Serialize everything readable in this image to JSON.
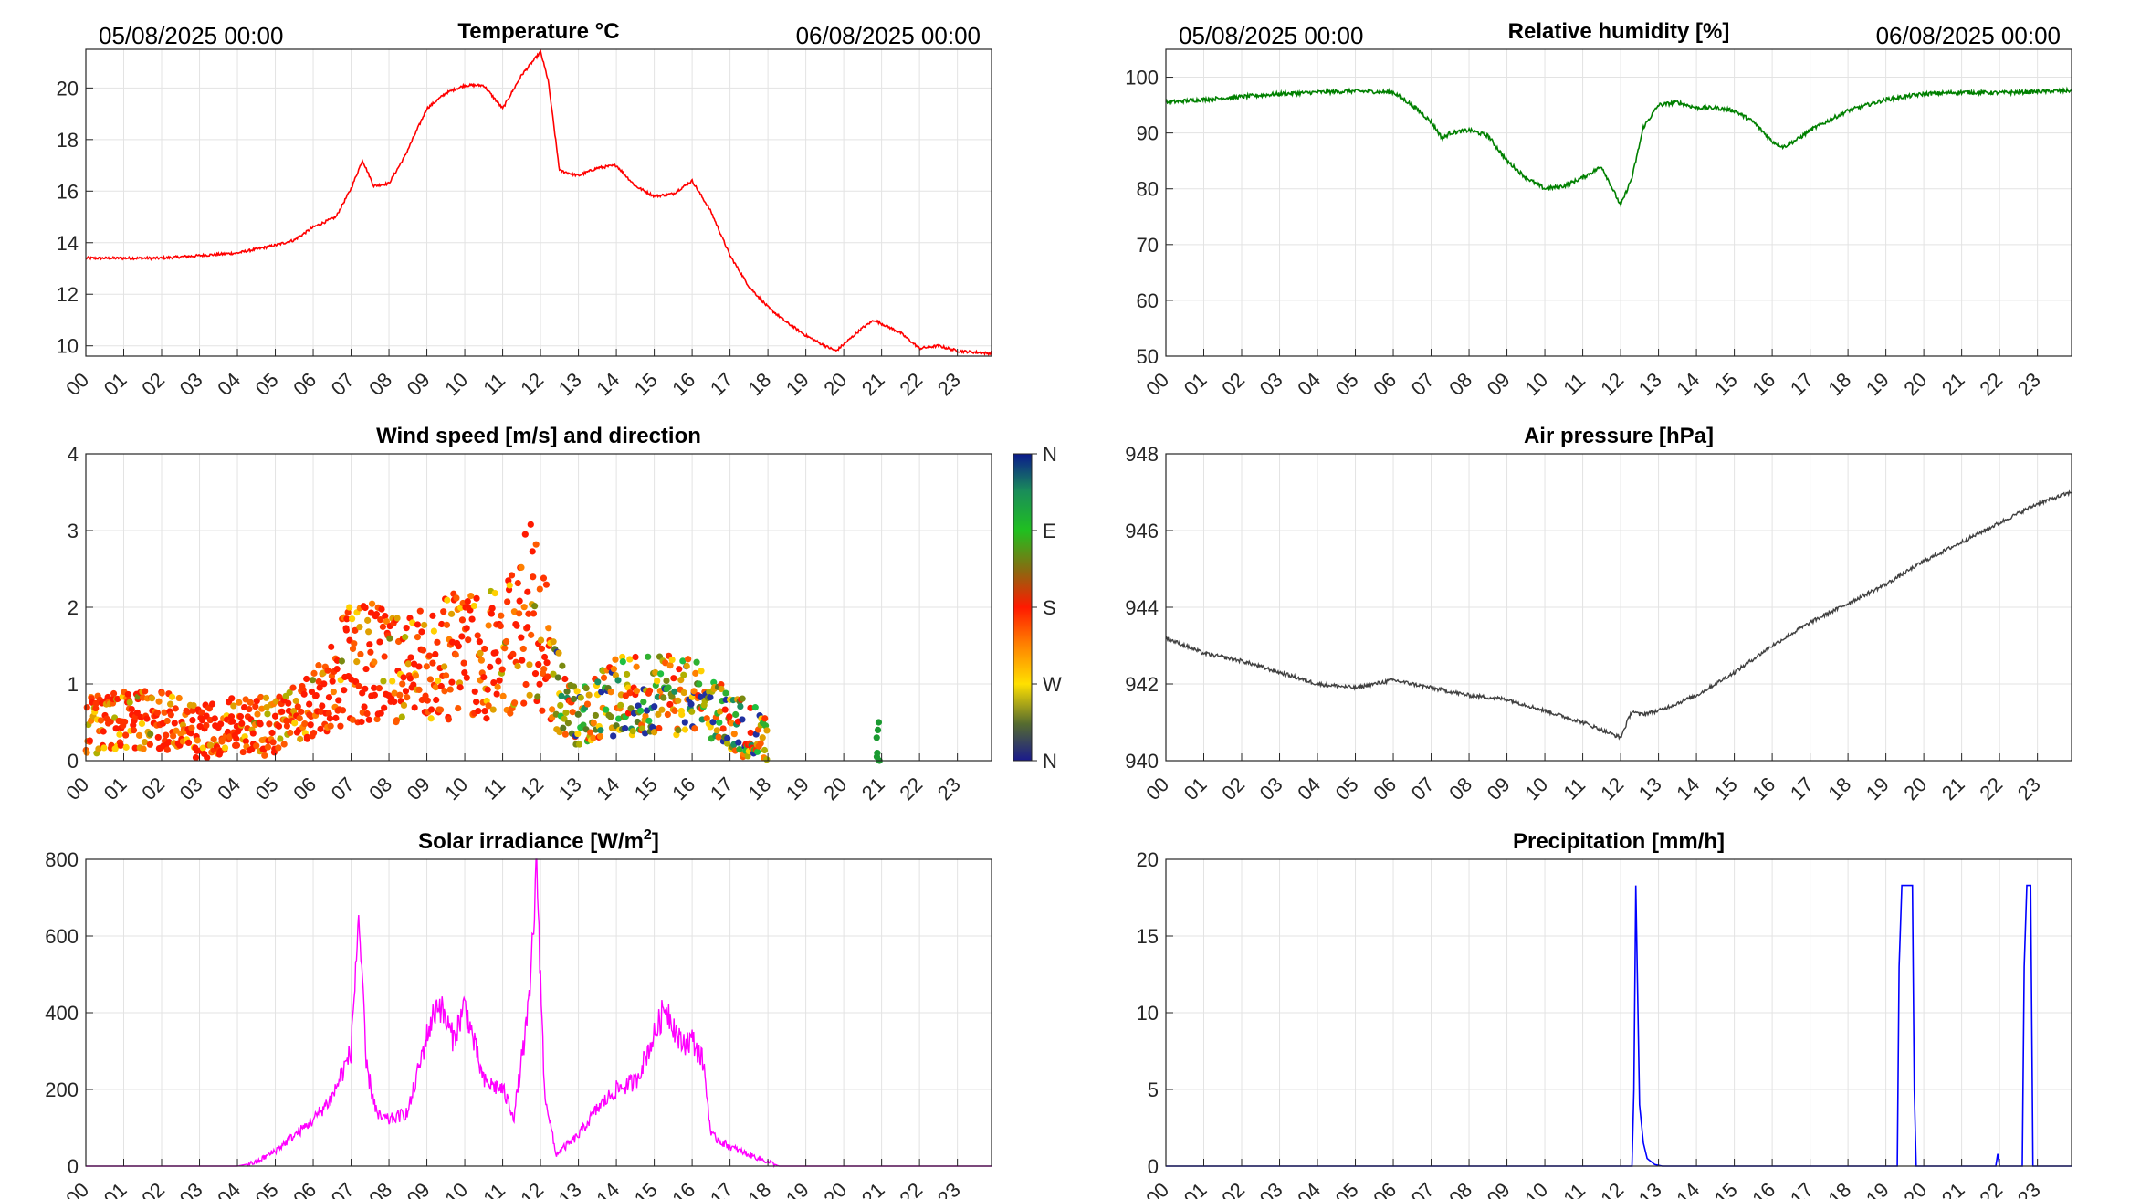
{
  "hours": [
    "00",
    "01",
    "02",
    "03",
    "04",
    "05",
    "06",
    "07",
    "08",
    "09",
    "10",
    "11",
    "12",
    "13",
    "14",
    "15",
    "16",
    "17",
    "18",
    "19",
    "20",
    "21",
    "22",
    "23"
  ],
  "date_start": "05/08/2025 00:00",
  "date_end": "06/08/2025 00:00",
  "colorbar": {
    "labels": [
      "N",
      "W",
      "S",
      "E",
      "N"
    ]
  },
  "chart_data": [
    {
      "id": "temperature",
      "type": "line",
      "title": "Temperature °C",
      "color": "#ff0000",
      "xlabel": "",
      "ylabel": "",
      "xlim": [
        0,
        23.9
      ],
      "ylim": [
        9.6,
        21.5
      ],
      "yticks": [
        10,
        12,
        14,
        16,
        18,
        20
      ],
      "x": [
        0,
        1,
        2,
        3,
        4,
        5,
        5.5,
        6,
        6.6,
        7,
        7.3,
        7.6,
        8,
        8.4,
        9,
        9.5,
        10,
        10.5,
        11,
        11.5,
        12,
        12.2,
        12.5,
        13,
        13.5,
        14,
        14.5,
        15,
        15.5,
        16,
        16.5,
        17,
        17.5,
        18,
        18.5,
        19,
        19.5,
        19.8,
        20.5,
        20.8,
        21.5,
        22,
        22.5,
        23,
        23.9
      ],
      "y": [
        13.4,
        13.4,
        13.4,
        13.5,
        13.6,
        13.9,
        14.1,
        14.6,
        15,
        16.1,
        17.2,
        16.2,
        16.3,
        17.3,
        19.2,
        19.8,
        20.1,
        20.1,
        19.2,
        20.5,
        21.4,
        20.3,
        16.8,
        16.6,
        16.9,
        17,
        16.2,
        15.8,
        15.9,
        16.4,
        15.2,
        13.5,
        12.3,
        11.5,
        10.9,
        10.4,
        10,
        9.8,
        10.7,
        11,
        10.5,
        9.9,
        10,
        9.8,
        9.7
      ]
    },
    {
      "id": "humidity",
      "type": "line",
      "title": "Relative humidity [%]",
      "color": "#008000",
      "xlabel": "",
      "ylabel": "",
      "xlim": [
        0,
        23.9
      ],
      "ylim": [
        50,
        105
      ],
      "yticks": [
        50,
        60,
        70,
        80,
        90,
        100
      ],
      "x": [
        0,
        1,
        2,
        3,
        4,
        5,
        6,
        6.5,
        7,
        7.3,
        7.5,
        8,
        8.5,
        9,
        9.5,
        10,
        10.5,
        11,
        11.5,
        12,
        12.3,
        12.6,
        13,
        13.5,
        14,
        14.5,
        15,
        15.5,
        16,
        16.3,
        16.7,
        17,
        18,
        19,
        20,
        21,
        22,
        23,
        23.9
      ],
      "y": [
        95.5,
        96,
        96.5,
        97,
        97.3,
        97.5,
        97.3,
        95,
        92,
        89,
        90,
        90.5,
        89.5,
        85,
        82,
        80,
        80.5,
        82,
        84,
        77,
        82,
        91,
        95,
        95.5,
        94.5,
        94.5,
        94,
        92,
        88.5,
        87.5,
        89,
        90.5,
        94,
        96,
        97,
        97.3,
        97.2,
        97.4,
        97.6
      ]
    },
    {
      "id": "wind",
      "type": "scatter",
      "title": "Wind speed [m/s] and direction",
      "xlabel": "",
      "ylabel": "",
      "xlim": [
        0,
        23.9
      ],
      "ylim": [
        0,
        4
      ],
      "yticks": [
        0,
        1,
        2,
        3,
        4
      ],
      "active_until_hour": 18,
      "extra_cluster": {
        "hour": 20.9,
        "speeds": [
          0,
          0.05,
          0.1,
          0.3,
          0.4,
          0.5
        ]
      },
      "speed_profile": {
        "x": [
          0,
          1,
          2,
          3,
          4,
          5,
          6,
          7,
          8,
          9,
          10,
          11,
          11.8,
          12.5,
          13,
          14,
          15,
          16,
          17,
          18
        ],
        "y": [
          0.4,
          0.5,
          0.5,
          0.3,
          0.4,
          0.4,
          0.7,
          1.2,
          1.2,
          1.2,
          1.3,
          1.3,
          1.9,
          0.8,
          0.5,
          0.8,
          0.8,
          0.8,
          0.5,
          0.2
        ]
      },
      "colorbar_range": [
        0,
        360
      ]
    },
    {
      "id": "pressure",
      "type": "line",
      "title": "Air pressure [hPa]",
      "color": "#404040",
      "xlabel": "",
      "ylabel": "",
      "xlim": [
        0,
        23.9
      ],
      "ylim": [
        940,
        948
      ],
      "yticks": [
        940,
        942,
        944,
        946,
        948
      ],
      "x": [
        0,
        1,
        2,
        3,
        4,
        5,
        6,
        7,
        8,
        9,
        10,
        11,
        12,
        12.3,
        12.5,
        13,
        14,
        15,
        16,
        17,
        18,
        19,
        20,
        21,
        22,
        23,
        23.9
      ],
      "y": [
        943.2,
        942.8,
        942.6,
        942.3,
        942,
        941.9,
        942.1,
        941.9,
        941.7,
        941.6,
        941.3,
        941,
        940.6,
        941.3,
        941.2,
        941.3,
        941.7,
        942.3,
        943,
        943.6,
        944.1,
        944.6,
        945.2,
        945.7,
        946.2,
        946.7,
        947
      ]
    },
    {
      "id": "solar",
      "type": "line",
      "title": "Solar irradiance [W/m²]",
      "title_main": "Solar irradiance [W/m",
      "title_sup": "2",
      "title_end": "]",
      "color": "#ff00ff",
      "xlabel": "",
      "ylabel": "",
      "xlim": [
        0,
        23.9
      ],
      "ylim": [
        0,
        800
      ],
      "yticks": [
        0,
        200,
        400,
        600,
        800
      ],
      "x": [
        0,
        4,
        4.5,
        5,
        5.5,
        6,
        6.5,
        7,
        7.2,
        7.4,
        7.7,
        8,
        8.5,
        9,
        9.3,
        9.7,
        10,
        10.5,
        11,
        11.3,
        11.7,
        11.9,
        12.1,
        12.4,
        13,
        13.5,
        14,
        14.5,
        15,
        15.3,
        15.7,
        16,
        16.3,
        16.5,
        17,
        17.5,
        18.3,
        18.5,
        23.9
      ],
      "y": [
        0,
        0,
        10,
        40,
        80,
        120,
        180,
        300,
        660,
        260,
        130,
        120,
        140,
        340,
        430,
        330,
        420,
        220,
        200,
        130,
        420,
        790,
        200,
        30,
        80,
        150,
        200,
        220,
        340,
        420,
        320,
        330,
        270,
        80,
        50,
        30,
        0,
        0,
        0
      ]
    },
    {
      "id": "precip",
      "type": "line",
      "title": "Precipitation [mm/h]",
      "color": "#0000ff",
      "xlabel": "",
      "ylabel": "",
      "xlim": [
        0,
        23.9
      ],
      "ylim": [
        0,
        20
      ],
      "yticks": [
        0,
        5,
        10,
        15,
        20
      ],
      "x": [
        0,
        12.3,
        12.35,
        12.4,
        12.45,
        12.5,
        12.6,
        12.7,
        12.9,
        13.1,
        19.3,
        19.35,
        19.42,
        19.7,
        19.75,
        19.8,
        21.9,
        21.95,
        22.0,
        22.6,
        22.65,
        22.72,
        22.82,
        22.88,
        23.9
      ],
      "y": [
        0,
        0,
        5,
        18.3,
        11,
        4,
        1.5,
        0.5,
        0.1,
        0,
        0,
        13,
        18.3,
        18.3,
        5,
        0,
        0,
        0.8,
        0,
        0,
        13,
        18.3,
        18.3,
        0,
        0
      ]
    }
  ]
}
